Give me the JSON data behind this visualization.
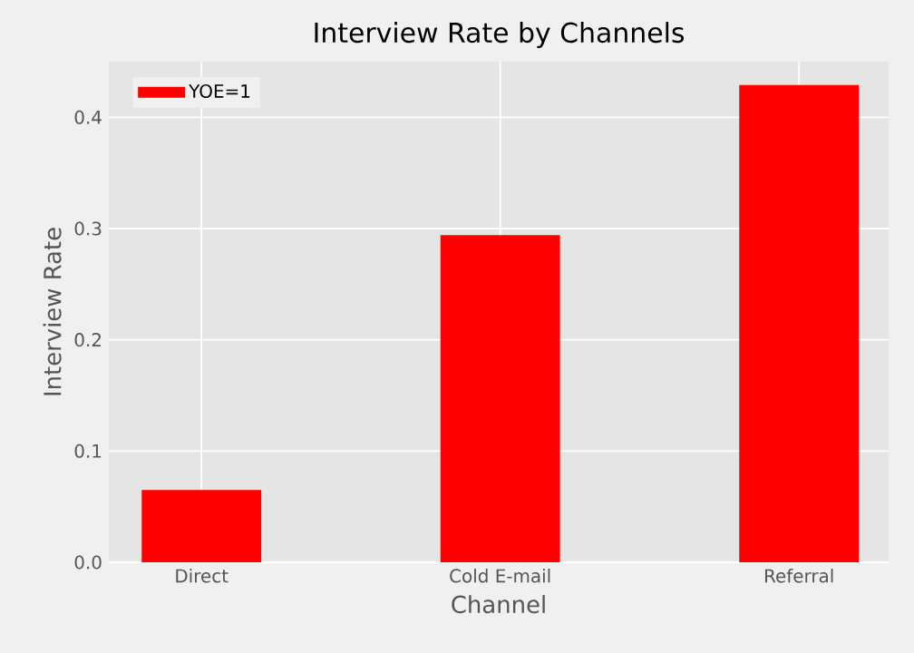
{
  "chart_data": {
    "type": "bar",
    "title": "Interview Rate by Channels",
    "xlabel": "Channel",
    "ylabel": "Interview Rate",
    "categories": [
      "Direct",
      "Cold E-mail",
      "Referral"
    ],
    "series": [
      {
        "name": "YOE=1",
        "color": "#ff0000",
        "values": [
          0.065,
          0.294,
          0.429
        ]
      }
    ],
    "ylim": [
      0,
      0.45
    ],
    "yticks": [
      {
        "value": 0,
        "label": "0.0"
      },
      0.1,
      0.2,
      0.3,
      0.4
    ],
    "grid": true,
    "legend": "top left"
  }
}
